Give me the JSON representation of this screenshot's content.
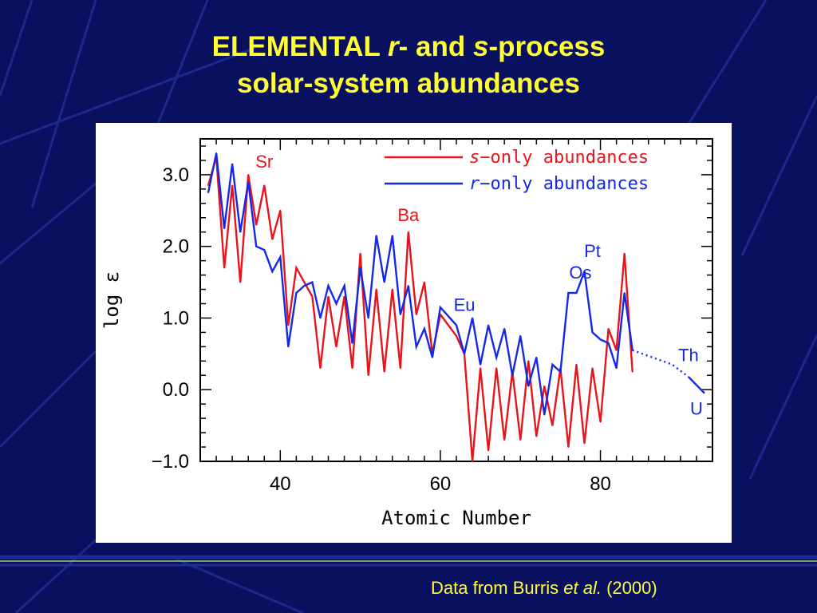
{
  "title": {
    "line1_pre": "ELEMENTAL ",
    "line1_r": "r",
    "line1_mid": "- and ",
    "line1_s": "s",
    "line1_post": "-process",
    "line2": "solar-system abundances"
  },
  "credit": {
    "pre": "Data from Burris ",
    "etal": "et al.",
    "post": " (2000)"
  },
  "colors": {
    "background": "#0a1060",
    "title": "#ffff33",
    "s_series": "#e8141c",
    "r_series": "#1428e6"
  },
  "chart_data": {
    "type": "line",
    "xlabel": "Atomic Number",
    "ylabel": "log ε",
    "xlim": [
      30,
      94
    ],
    "ylim": [
      -1.0,
      3.5
    ],
    "x_ticks": [
      40,
      60,
      80
    ],
    "y_ticks": [
      3.0,
      2.0,
      1.0,
      0.0,
      -1.0
    ],
    "y_tick_labels": [
      "3.0",
      "2.0",
      "1.0",
      "0.0",
      "−1.0"
    ],
    "legend": {
      "position": "top-right",
      "entries": [
        {
          "series": "s",
          "italic": "s",
          "text": "−only abundances"
        },
        {
          "series": "r",
          "italic": "r",
          "text": "−only abundances"
        }
      ]
    },
    "series": [
      {
        "key": "s",
        "name": "s−only abundances",
        "color": "#e8141c",
        "points": [
          [
            31,
            2.85
          ],
          [
            32,
            3.25
          ],
          [
            33,
            1.7
          ],
          [
            34,
            2.85
          ],
          [
            35,
            1.5
          ],
          [
            36,
            3.0
          ],
          [
            37,
            2.3
          ],
          [
            38,
            2.85
          ],
          [
            39,
            2.1
          ],
          [
            40,
            2.5
          ],
          [
            41,
            0.9
          ],
          [
            42,
            1.7
          ],
          [
            43,
            1.5
          ],
          [
            44,
            1.3
          ],
          [
            45,
            0.3
          ],
          [
            46,
            1.3
          ],
          [
            47,
            0.6
          ],
          [
            48,
            1.3
          ],
          [
            49,
            0.3
          ],
          [
            50,
            1.9
          ],
          [
            51,
            0.2
          ],
          [
            52,
            1.4
          ],
          [
            53,
            0.25
          ],
          [
            54,
            1.4
          ],
          [
            55,
            0.3
          ],
          [
            56,
            2.2
          ],
          [
            57,
            1.05
          ],
          [
            58,
            1.5
          ],
          [
            59,
            0.5
          ],
          [
            60,
            1.05
          ],
          [
            62,
            0.75
          ],
          [
            63,
            0.5
          ],
          [
            64,
            -1.0
          ],
          [
            65,
            0.3
          ],
          [
            66,
            -0.85
          ],
          [
            67,
            0.3
          ],
          [
            68,
            -0.7
          ],
          [
            69,
            0.25
          ],
          [
            70,
            -0.7
          ],
          [
            71,
            0.4
          ],
          [
            72,
            -0.65
          ],
          [
            73,
            0.05
          ],
          [
            74,
            -0.5
          ],
          [
            75,
            0.3
          ],
          [
            76,
            -0.8
          ],
          [
            77,
            0.35
          ],
          [
            78,
            -0.75
          ],
          [
            79,
            0.3
          ],
          [
            80,
            -0.45
          ],
          [
            81,
            0.85
          ],
          [
            82,
            0.55
          ],
          [
            83,
            1.9
          ],
          [
            84,
            0.25
          ]
        ]
      },
      {
        "key": "r",
        "name": "r−only abundances",
        "color": "#1428e6",
        "points": [
          [
            31,
            2.75
          ],
          [
            32,
            3.3
          ],
          [
            33,
            2.25
          ],
          [
            34,
            3.15
          ],
          [
            35,
            2.2
          ],
          [
            36,
            2.9
          ],
          [
            37,
            2.0
          ],
          [
            38,
            1.95
          ],
          [
            39,
            1.65
          ],
          [
            40,
            1.85
          ],
          [
            41,
            0.6
          ],
          [
            42,
            1.35
          ],
          [
            43,
            1.45
          ],
          [
            44,
            1.5
          ],
          [
            45,
            1.0
          ],
          [
            46,
            1.45
          ],
          [
            47,
            1.2
          ],
          [
            48,
            1.45
          ],
          [
            49,
            0.65
          ],
          [
            50,
            1.7
          ],
          [
            51,
            1.0
          ],
          [
            52,
            2.15
          ],
          [
            53,
            1.5
          ],
          [
            54,
            2.15
          ],
          [
            55,
            1.05
          ],
          [
            56,
            1.45
          ],
          [
            57,
            0.6
          ],
          [
            58,
            0.85
          ],
          [
            59,
            0.45
          ],
          [
            60,
            1.15
          ],
          [
            62,
            0.9
          ],
          [
            63,
            0.5
          ],
          [
            64,
            1.0
          ],
          [
            65,
            0.35
          ],
          [
            66,
            0.9
          ],
          [
            67,
            0.45
          ],
          [
            68,
            0.85
          ],
          [
            69,
            0.2
          ],
          [
            70,
            0.75
          ],
          [
            71,
            0.05
          ],
          [
            72,
            0.45
          ],
          [
            73,
            -0.35
          ],
          [
            74,
            0.35
          ],
          [
            75,
            0.25
          ],
          [
            76,
            1.35
          ],
          [
            77,
            1.35
          ],
          [
            78,
            1.65
          ],
          [
            79,
            0.8
          ],
          [
            80,
            0.7
          ],
          [
            81,
            0.65
          ],
          [
            82,
            0.3
          ],
          [
            83,
            1.35
          ],
          [
            84,
            0.55
          ]
        ],
        "dotted_extension": [
          [
            84,
            0.55
          ],
          [
            89,
            0.35
          ],
          [
            91,
            0.18
          ]
        ],
        "tail_points": [
          [
            91,
            0.18
          ],
          [
            93,
            -0.05
          ]
        ]
      }
    ],
    "annotations": [
      {
        "text": "Sr",
        "series": "s",
        "x": 38,
        "y": 3.1
      },
      {
        "text": "Ba",
        "series": "s",
        "x": 56,
        "y": 2.35
      },
      {
        "text": "Eu",
        "series": "r",
        "x": 63,
        "y": 1.1
      },
      {
        "text": "Os",
        "series": "r",
        "x": 77.5,
        "y": 1.55
      },
      {
        "text": "Pt",
        "series": "r",
        "x": 79,
        "y": 1.85
      },
      {
        "text": "Th",
        "series": "r",
        "x": 91,
        "y": 0.4
      },
      {
        "text": "U",
        "series": "r",
        "x": 92,
        "y": -0.35
      }
    ]
  }
}
